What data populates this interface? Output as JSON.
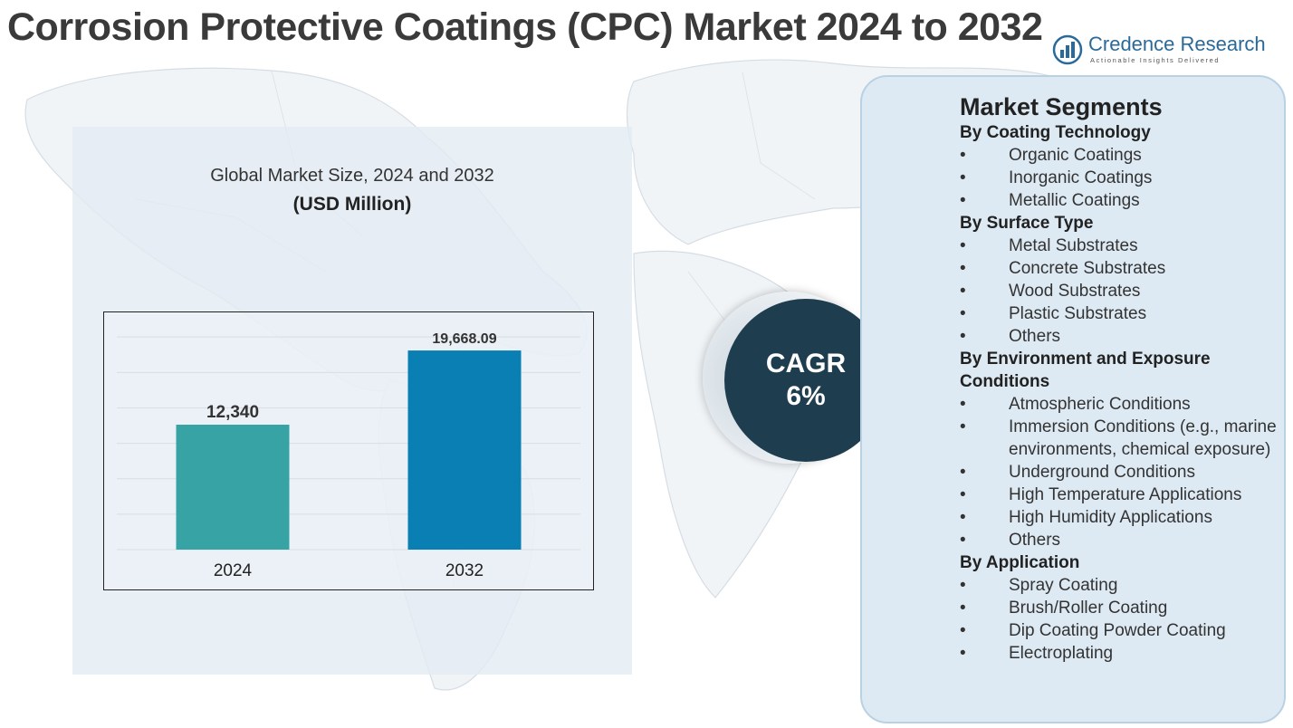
{
  "title": "Corrosion Protective Coatings (CPC) Market 2024 to 2032",
  "logo": {
    "name": "Credence Research",
    "tagline": "Actionable Insights Delivered",
    "icon": "bar-chart-icon"
  },
  "market_size": {
    "title": "Global Market Size, 2024 and 2032",
    "unit": "(USD Million)"
  },
  "colors": {
    "bar_2024": "#38a3a5",
    "bar_2032": "#0a7fb3",
    "cagr_circle": "#1e3d4f",
    "panel": "#deeaf3"
  },
  "chart_data": {
    "type": "bar",
    "categories": [
      "2024",
      "2032"
    ],
    "values": [
      12340,
      19668.09
    ],
    "data_labels": [
      "12,340",
      "19,668.09"
    ],
    "title": "",
    "xlabel": "",
    "ylabel": "",
    "ylim": [
      0,
      22000
    ],
    "grid": true,
    "legend": "none"
  },
  "cagr": {
    "label": "CAGR",
    "value": "6%"
  },
  "segments": {
    "heading": "Market Segments",
    "bullet": "•",
    "groups": [
      {
        "title": "By Coating Technology",
        "items": [
          "Organic Coatings",
          "Inorganic Coatings",
          "Metallic Coatings"
        ]
      },
      {
        "title": "By Surface Type",
        "items": [
          "Metal Substrates",
          "Concrete Substrates",
          "Wood Substrates",
          "Plastic Substrates",
          "Others"
        ]
      },
      {
        "title": "By Environment and Exposure Conditions",
        "items": [
          "Atmospheric Conditions",
          "Immersion Conditions (e.g., marine environments, chemical exposure)",
          "Underground Conditions",
          "High Temperature Applications",
          "High Humidity Applications",
          "Others"
        ]
      },
      {
        "title": "By Application",
        "items": [
          "Spray Coating",
          "Brush/Roller Coating",
          "Dip Coating Powder Coating",
          "Electroplating"
        ]
      }
    ]
  }
}
